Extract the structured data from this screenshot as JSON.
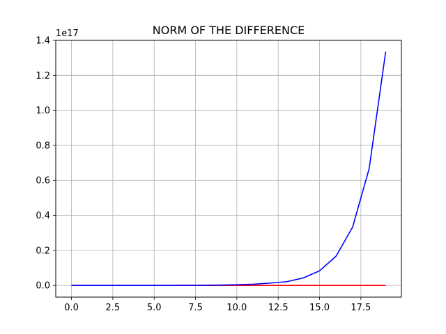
{
  "chart_data": {
    "type": "line",
    "title": "NORM OF THE DIFFERENCE",
    "xlabel": "",
    "ylabel": "",
    "y_offset_label": "1e17",
    "xlim": [
      -0.95,
      19.95
    ],
    "ylim": [
      -0.067,
      1.4
    ],
    "x_ticks": [
      0,
      2.5,
      5,
      7.5,
      10,
      12.5,
      15,
      17.5
    ],
    "x_tick_labels": [
      "0.0",
      "2.5",
      "5.0",
      "7.5",
      "10.0",
      "12.5",
      "15.0",
      "17.5"
    ],
    "y_ticks": [
      0,
      0.2,
      0.4,
      0.6,
      0.8,
      1.0,
      1.2,
      1.4
    ],
    "y_tick_labels": [
      "0.0",
      "0.2",
      "0.4",
      "0.6",
      "0.8",
      "1.0",
      "1.2",
      "1.4"
    ],
    "grid": true,
    "x": [
      0,
      1,
      2,
      3,
      4,
      5,
      6,
      7,
      8,
      9,
      10,
      11,
      12,
      13,
      14,
      15,
      16,
      17,
      18,
      19
    ],
    "series": [
      {
        "color": "#0000ff",
        "values": [
          0.0,
          0.0,
          0.0,
          0.0,
          0.0,
          0.0,
          0.0,
          0.0005,
          0.001,
          0.002,
          0.004,
          0.007,
          0.013,
          0.021,
          0.042,
          0.083,
          0.167,
          0.333,
          0.667,
          1.335
        ]
      },
      {
        "color": "#ff0000",
        "values": [
          0,
          0,
          0,
          0,
          0,
          0,
          0,
          0,
          0,
          0,
          0,
          0,
          0,
          0,
          0,
          0,
          0,
          0,
          0,
          0
        ]
      }
    ]
  }
}
